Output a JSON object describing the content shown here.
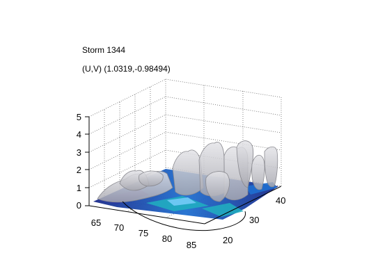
{
  "chart_data": {
    "type": "surface3d",
    "title_lines": [
      "Storm 1344",
      "(U,V) (1.0319,-0.98494)"
    ],
    "x_ticks": [
      65,
      70,
      75,
      80,
      85
    ],
    "y_ticks": [
      20,
      30,
      40
    ],
    "z_ticks": [
      0,
      1,
      2,
      3,
      4,
      5
    ],
    "xlim": [
      62,
      88
    ],
    "ylim": [
      15,
      45
    ],
    "zlim": [
      0,
      5
    ],
    "grid": true,
    "colors": {
      "isosurface": "#c8c8cc",
      "isosurface_edge": "#8a8a90",
      "floor_low": "#1a2a8a",
      "floor_mid": "#1f6fd0",
      "floor_high": "#20b0c0",
      "grid": "#666666",
      "axis": "#000000",
      "track": "#000000"
    }
  }
}
